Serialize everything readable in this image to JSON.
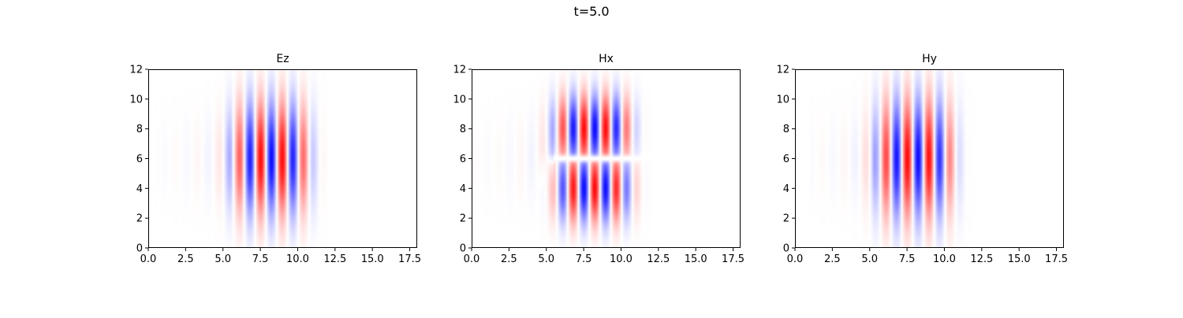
{
  "figure": {
    "suptitle": "t=5.0"
  },
  "chart_data": [
    {
      "type": "heatmap",
      "title": "Ez",
      "xlim": [
        0,
        18
      ],
      "ylim": [
        0,
        12
      ],
      "xticks": [
        "0.0",
        "2.5",
        "5.0",
        "7.5",
        "10.0",
        "12.5",
        "15.0",
        "17.5"
      ],
      "yticks": [
        "0",
        "2",
        "4",
        "6",
        "8",
        "10",
        "12"
      ],
      "colormap": "bwr",
      "field": {
        "center_x": 8.2,
        "center_y": 6.0,
        "half_length_x": 2.6,
        "half_width_y": 4.0,
        "wavelength": 1.45,
        "symmetric_y": true,
        "tail_start_x": 0.5
      }
    },
    {
      "type": "heatmap",
      "title": "Hx",
      "xlim": [
        0,
        18
      ],
      "ylim": [
        0,
        12
      ],
      "xticks": [
        "0.0",
        "2.5",
        "5.0",
        "7.5",
        "10.0",
        "12.5",
        "15.0",
        "17.5"
      ],
      "yticks": [
        "0",
        "2",
        "4",
        "6",
        "8",
        "10",
        "12"
      ],
      "colormap": "bwr",
      "field": {
        "center_x": 8.1,
        "center_y": 6.0,
        "half_length_x": 2.6,
        "half_width_y": 5.5,
        "wavelength": 1.45,
        "symmetric_y": false,
        "tail_start_x": 0.0
      }
    },
    {
      "type": "heatmap",
      "title": "Hy",
      "xlim": [
        0,
        18
      ],
      "ylim": [
        0,
        12
      ],
      "xticks": [
        "0.0",
        "2.5",
        "5.0",
        "7.5",
        "10.0",
        "12.5",
        "15.0",
        "17.5"
      ],
      "yticks": [
        "0",
        "2",
        "4",
        "6",
        "8",
        "10",
        "12"
      ],
      "colormap": "bwr",
      "field": {
        "center_x": 8.0,
        "center_y": 6.0,
        "half_length_x": 2.6,
        "half_width_y": 4.2,
        "wavelength": 1.45,
        "symmetric_y": true,
        "tail_start_x": 1.0
      }
    }
  ]
}
